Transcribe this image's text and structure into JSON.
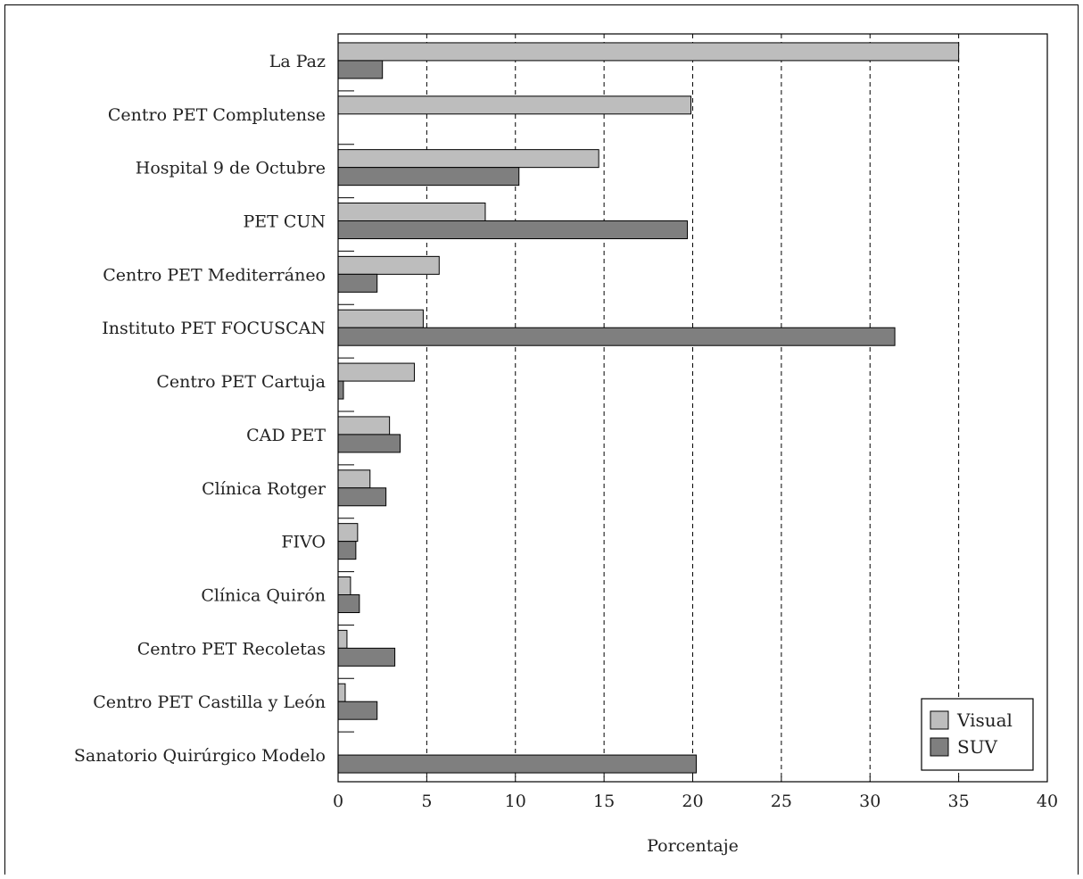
{
  "chart_data": {
    "type": "bar",
    "orientation": "horizontal",
    "xlabel": "Porcentaje",
    "xlim": [
      0,
      40
    ],
    "xticks": [
      0,
      5,
      10,
      15,
      20,
      25,
      30,
      35,
      40
    ],
    "grid": "vertical dashed",
    "legend_position": "bottom-right",
    "categories": [
      "La Paz",
      "Centro PET Complutense",
      "Hospital 9 de Octubre",
      "PET CUN",
      "Centro PET Mediterráneo",
      "Instituto PET FOCUSCAN",
      "Centro PET Cartuja",
      "CAD PET",
      "Clínica Rotger",
      "FIVO",
      "Clínica Quirón",
      "Centro PET Recoletas",
      "Centro PET Castilla y León",
      "Sanatorio Quirúrgico Modelo"
    ],
    "series": [
      {
        "name": "Visual",
        "color": "#bdbdbd",
        "values": [
          35.0,
          19.9,
          14.7,
          8.3,
          5.7,
          4.8,
          4.3,
          2.9,
          1.8,
          1.1,
          0.7,
          0.5,
          0.4,
          0.0
        ]
      },
      {
        "name": "SUV",
        "color": "#7f7f7f",
        "values": [
          2.5,
          0.0,
          10.2,
          19.7,
          2.2,
          31.4,
          0.3,
          3.5,
          2.7,
          1.0,
          1.2,
          3.2,
          2.2,
          20.2
        ]
      }
    ]
  }
}
